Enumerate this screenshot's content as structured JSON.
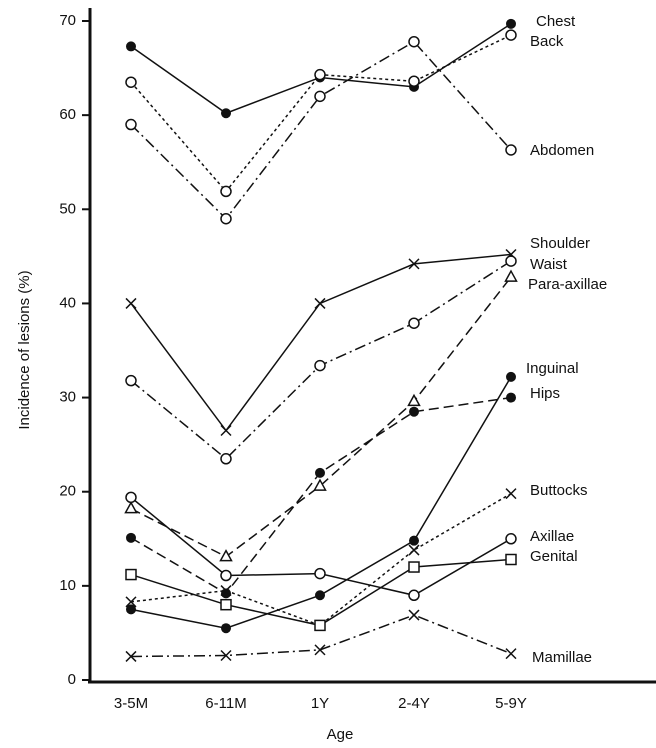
{
  "chart_data": {
    "type": "line",
    "xlabel": "Age",
    "ylabel": "Incidence of lesions (%)",
    "categories": [
      "3-5M",
      "6-11M",
      "1Y",
      "2-4Y",
      "5-9Y"
    ],
    "ylim": [
      0,
      70
    ],
    "yticks": [
      0,
      10,
      20,
      30,
      40,
      50,
      60,
      70
    ],
    "series": [
      {
        "name": "Chest",
        "color": "#111",
        "marker": "filled-circle",
        "line": "solid",
        "values": [
          67.3,
          60.2,
          64.0,
          63.0,
          69.7
        ]
      },
      {
        "name": "Back",
        "color": "#111",
        "marker": "open-circle",
        "line": "dotted",
        "values": [
          63.5,
          51.9,
          64.3,
          63.6,
          68.5
        ]
      },
      {
        "name": "Abdomen",
        "color": "#111",
        "marker": "open-circle",
        "line": "dashdot",
        "values": [
          59.0,
          49.0,
          62.0,
          67.8,
          56.3
        ]
      },
      {
        "name": "Shoulder",
        "color": "#111",
        "marker": "cross",
        "line": "solid",
        "values": [
          40.0,
          26.5,
          40.0,
          44.2,
          45.2
        ]
      },
      {
        "name": "Waist",
        "color": "#111",
        "marker": "open-circle",
        "line": "dashdot",
        "values": [
          31.8,
          23.5,
          33.4,
          37.9,
          44.5
        ]
      },
      {
        "name": "Para-axillae",
        "color": "#111",
        "marker": "triangle",
        "line": "dashed",
        "values": [
          18.2,
          13.1,
          20.6,
          29.6,
          42.8
        ]
      },
      {
        "name": "Inguinal",
        "color": "#111",
        "marker": "filled-circle",
        "line": "solid",
        "values": [
          7.5,
          5.5,
          9.0,
          14.8,
          32.2
        ]
      },
      {
        "name": "Hips",
        "color": "#111",
        "marker": "filled-circle",
        "line": "dashed",
        "values": [
          15.1,
          9.2,
          22.0,
          28.5,
          30.0
        ]
      },
      {
        "name": "Buttocks",
        "color": "#111",
        "marker": "cross",
        "line": "dotted",
        "values": [
          8.3,
          9.5,
          5.8,
          13.8,
          19.8
        ]
      },
      {
        "name": "Axillae",
        "color": "#111",
        "marker": "open-circle",
        "line": "solid",
        "values": [
          19.4,
          11.1,
          11.3,
          9.0,
          15.0
        ]
      },
      {
        "name": "Genital",
        "color": "#111",
        "marker": "square",
        "line": "solid",
        "values": [
          11.2,
          8.0,
          5.8,
          12.0,
          12.8
        ]
      },
      {
        "name": "Mamillae",
        "color": "#111",
        "marker": "cross",
        "line": "dashdot",
        "values": [
          2.5,
          2.6,
          3.2,
          6.9,
          2.8
        ]
      }
    ]
  }
}
